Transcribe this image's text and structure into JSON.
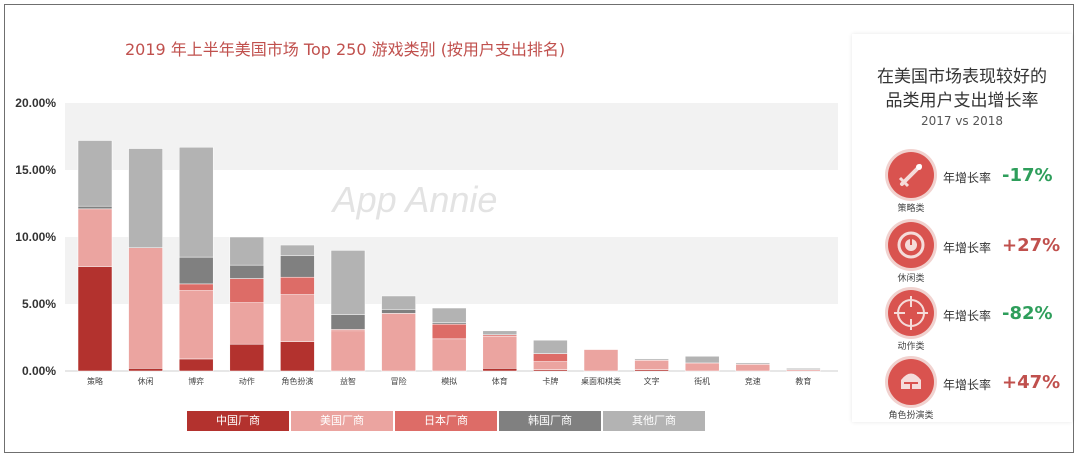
{
  "title": "2019 年上半年美国市场 Top 250 游戏类别 (按用户支出排名)",
  "watermark": "App Annie",
  "chart_data": {
    "type": "bar",
    "stacked": true,
    "title": "2019 年上半年美国市场 Top 250 游戏类别 (按用户支出排名)",
    "categories": [
      "策略",
      "休闲",
      "博弈",
      "动作",
      "角色扮演",
      "益智",
      "冒险",
      "模拟",
      "体育",
      "卡牌",
      "桌面和棋类",
      "文字",
      "街机",
      "竞速",
      "教育"
    ],
    "series": [
      {
        "name": "中国厂商",
        "color": "#b3322e",
        "values": [
          7.8,
          0.2,
          0.9,
          2.0,
          2.2,
          0.0,
          0.0,
          0.0,
          0.2,
          0.1,
          0.0,
          0.1,
          0.0,
          0.0,
          0.0
        ]
      },
      {
        "name": "美国厂商",
        "color": "#eba4a0",
        "values": [
          4.3,
          9.0,
          5.1,
          3.1,
          3.5,
          3.0,
          4.3,
          2.4,
          2.4,
          0.6,
          1.6,
          0.7,
          0.6,
          0.5,
          0.1
        ]
      },
      {
        "name": "日本厂商",
        "color": "#dd6c67",
        "values": [
          0.0,
          0.0,
          0.5,
          1.8,
          1.3,
          0.1,
          0.0,
          1.1,
          0.1,
          0.6,
          0.0,
          0.0,
          0.0,
          0.0,
          0.0
        ]
      },
      {
        "name": "韩国厂商",
        "color": "#808080",
        "values": [
          0.2,
          0.0,
          2.0,
          1.0,
          1.6,
          1.1,
          0.3,
          0.1,
          0.0,
          0.0,
          0.0,
          0.0,
          0.0,
          0.0,
          0.0
        ]
      },
      {
        "name": "其他厂商",
        "color": "#b3b3b3",
        "values": [
          4.9,
          7.4,
          8.2,
          2.1,
          0.8,
          4.8,
          1.0,
          1.1,
          0.3,
          1.0,
          0.0,
          0.1,
          0.5,
          0.1,
          0.1
        ]
      }
    ],
    "y_ticks": [
      "0.00%",
      "5.00%",
      "10.00%",
      "15.00%",
      "20.00%"
    ],
    "ylim": [
      0,
      20
    ],
    "grid": true,
    "legend_position": "bottom"
  },
  "panel": {
    "title_line1": "在美国市场表现较好的",
    "title_line2": "品类用户支出增长率",
    "subtitle": "2017 vs 2018",
    "rows": [
      {
        "category": "策略类",
        "label": "年增长率",
        "value": "-17%",
        "color": "#2e9e5b",
        "icon": "strategy-sword-icon"
      },
      {
        "category": "休闲类",
        "label": "年增长率",
        "value": "+27%",
        "color": "#c0504d",
        "icon": "casual-clock-icon"
      },
      {
        "category": "动作类",
        "label": "年增长率",
        "value": "-82%",
        "color": "#2e9e5b",
        "icon": "action-crosshair-icon"
      },
      {
        "category": "角色扮演类",
        "label": "年增长率",
        "value": "+47%",
        "color": "#c0504d",
        "icon": "roleplay-helmet-icon"
      }
    ]
  }
}
